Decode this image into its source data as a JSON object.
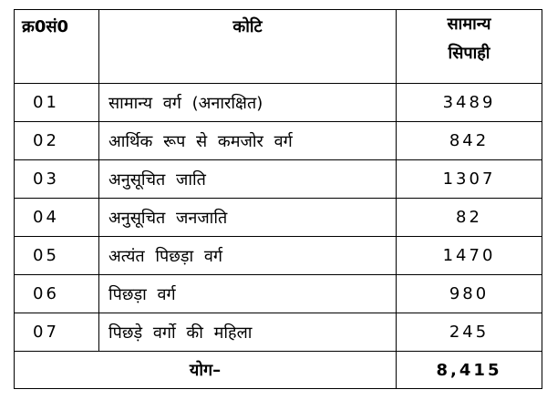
{
  "table": {
    "headers": {
      "serial": "क्र0सं0",
      "category": "कोटि",
      "general_line1": "सामान्य",
      "general_line2": "सिपाही"
    },
    "rows": [
      {
        "serial": "01",
        "category": "सामान्य वर्ग (अनारक्षित)",
        "count": "3489"
      },
      {
        "serial": "02",
        "category": "आर्थिक रूप से कमजोर वर्ग",
        "count": "842"
      },
      {
        "serial": "03",
        "category": "अनुसूचित जाति",
        "count": "1307"
      },
      {
        "serial": "04",
        "category": "अनुसूचित जनजाति",
        "count": "82"
      },
      {
        "serial": "05",
        "category": "अत्यंत पिछड़ा वर्ग",
        "count": "1470"
      },
      {
        "serial": "06",
        "category": "पिछड़ा वर्ग",
        "count": "980"
      },
      {
        "serial": "07",
        "category": "पिछड़े वर्गो की महिला",
        "count": "245"
      }
    ],
    "footer": {
      "label": "योग–",
      "total": "8,415"
    }
  }
}
